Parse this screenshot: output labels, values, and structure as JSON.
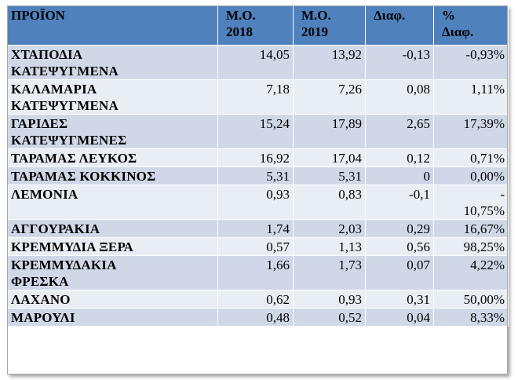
{
  "headers": {
    "product": "ΠΡΟΪΟΝ",
    "avg2018": "Μ.Ο.\n2018",
    "avg2019": "Μ.Ο.\n2019",
    "diff": "Διαφ.",
    "pct": "%\nΔιαφ."
  },
  "rows": [
    {
      "name": "ΧΤΑΠΟΔΙΑ\nΚΑΤΕΨΥΓΜΕΝΑ",
      "v2018": "14,05",
      "v2019": "13,92",
      "diff": "-0,13",
      "pct": "-0,93%"
    },
    {
      "name": "ΚΑΛΑΜΑΡΙΑ\nΚΑΤΕΨΥΓΜΕΝΑ",
      "v2018": "7,18",
      "v2019": "7,26",
      "diff": "0,08",
      "pct": "1,11%"
    },
    {
      "name": "ΓΑΡΙΔΕΣ\nΚΑΤΕΨΥΓΜΕΝΕΣ",
      "v2018": "15,24",
      "v2019": "17,89",
      "diff": "2,65",
      "pct": "17,39%"
    },
    {
      "name": "ΤΑΡΑΜΑΣ ΛΕΥΚΟΣ",
      "v2018": "16,92",
      "v2019": "17,04",
      "diff": "0,12",
      "pct": "0,71%"
    },
    {
      "name": "ΤΑΡΑΜΑΣ ΚΟΚΚΙΝΟΣ",
      "v2018": "5,31",
      "v2019": "5,31",
      "diff": "0",
      "pct": "0,00%"
    },
    {
      "name": "ΛΕΜΟΝΙΑ",
      "v2018": "0,93",
      "v2019": "0,83",
      "diff": "-0,1",
      "pct": "-\n10,75%"
    },
    {
      "name": "ΑΓΓΟΥΡΑΚΙΑ",
      "v2018": "1,74",
      "v2019": "2,03",
      "diff": "0,29",
      "pct": "16,67%"
    },
    {
      "name": "ΚΡΕΜΜΥΔΙΑ ΞΕΡΑ",
      "v2018": "0,57",
      "v2019": "1,13",
      "diff": "0,56",
      "pct": "98,25%"
    },
    {
      "name": "ΚΡΕΜΜΥΔΑΚΙΑ\nΦΡΕΣΚΑ",
      "v2018": "1,66",
      "v2019": "1,73",
      "diff": "0,07",
      "pct": "4,22%"
    },
    {
      "name": "ΛΑΧΑΝΟ",
      "v2018": "0,62",
      "v2019": "0,93",
      "diff": "0,31",
      "pct": "50,00%"
    },
    {
      "name": "ΜΑΡΟΥΛΙ",
      "v2018": "0,48",
      "v2019": "0,52",
      "diff": "0,04",
      "pct": "8,33%"
    }
  ],
  "colors": {
    "header_bg": "#4f81bd",
    "row_odd_bg": "#d0d8e8",
    "row_even_bg": "#e9edf4"
  }
}
